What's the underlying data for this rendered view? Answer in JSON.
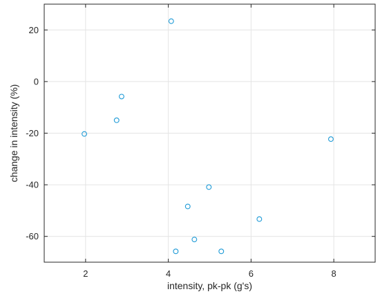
{
  "chart_data": {
    "type": "scatter",
    "xlabel": "intensity, pk-pk (g's)",
    "ylabel": "change in intensity (%)",
    "xlim": [
      1,
      9
    ],
    "ylim": [
      -70,
      30
    ],
    "x_ticks": [
      2,
      4,
      6,
      8
    ],
    "y_ticks": [
      20,
      0,
      -20,
      -40,
      -60
    ],
    "grid": true,
    "marker": "open-circle",
    "marker_color": "#1f9bd7",
    "points": [
      {
        "x": 1.97,
        "y": -20.3
      },
      {
        "x": 2.75,
        "y": -15.0
      },
      {
        "x": 2.87,
        "y": -5.8
      },
      {
        "x": 4.07,
        "y": 23.4
      },
      {
        "x": 4.18,
        "y": -65.8
      },
      {
        "x": 4.47,
        "y": -48.4
      },
      {
        "x": 4.63,
        "y": -61.2
      },
      {
        "x": 4.98,
        "y": -40.9
      },
      {
        "x": 5.28,
        "y": -65.8
      },
      {
        "x": 6.2,
        "y": -53.3
      },
      {
        "x": 7.93,
        "y": -22.3
      }
    ]
  }
}
